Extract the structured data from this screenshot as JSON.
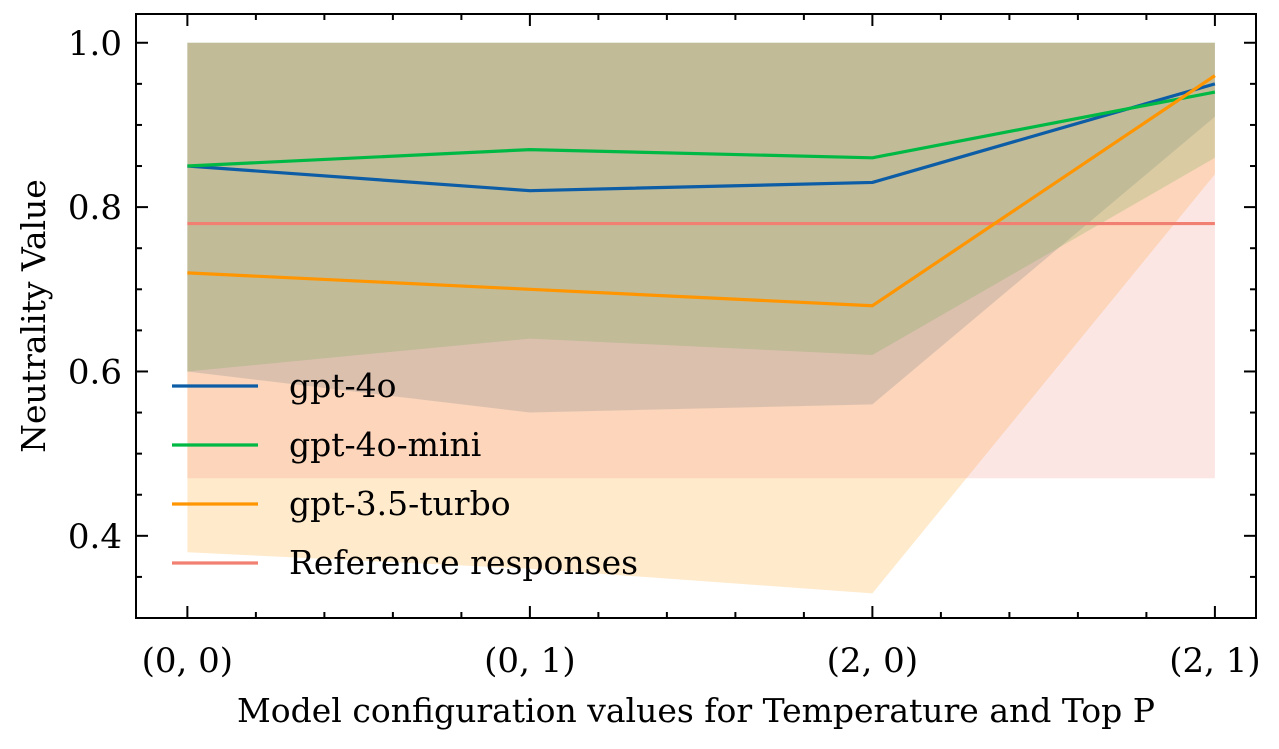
{
  "chart_data": {
    "type": "line",
    "title": "",
    "xlabel": "Model configuration values for Temperature and Top P",
    "ylabel": "Neutrality Value",
    "categories": [
      "(0, 0)",
      "(0, 1)",
      "(2, 0)",
      "(2, 1)"
    ],
    "xlim": [
      -0.15,
      3.12
    ],
    "ylim": [
      0.3,
      1.035
    ],
    "yticks": [
      0.4,
      0.6,
      0.8,
      1.0
    ],
    "ytick_labels": [
      "0.4",
      "0.6",
      "0.8",
      "1.0"
    ],
    "grid": false,
    "legend_position": "lower-left",
    "series": [
      {
        "name": "gpt-4o",
        "color": "#0C5DA5",
        "values": [
          0.85,
          0.82,
          0.83,
          0.95
        ],
        "band_lower": [
          0.6,
          0.55,
          0.56,
          0.91
        ],
        "band_upper": [
          1.0,
          1.0,
          1.0,
          1.0
        ]
      },
      {
        "name": "gpt-4o-mini",
        "color": "#00B945",
        "values": [
          0.85,
          0.87,
          0.86,
          0.94
        ],
        "band_lower": [
          0.6,
          0.64,
          0.62,
          0.86
        ],
        "band_upper": [
          1.0,
          1.0,
          1.0,
          1.0
        ]
      },
      {
        "name": "gpt-3.5-turbo",
        "color": "#FF9500",
        "values": [
          0.72,
          0.7,
          0.68,
          0.96
        ],
        "band_lower": [
          0.38,
          0.36,
          0.33,
          0.84
        ],
        "band_upper": [
          1.0,
          1.0,
          1.0,
          1.0
        ]
      },
      {
        "name": "Reference responses",
        "color": "#F28072",
        "values": [
          0.78,
          0.78,
          0.78,
          0.78
        ],
        "band_lower": [
          0.47,
          0.47,
          0.47,
          0.47
        ],
        "band_upper": [
          1.0,
          1.0,
          1.0,
          1.0
        ]
      }
    ]
  }
}
